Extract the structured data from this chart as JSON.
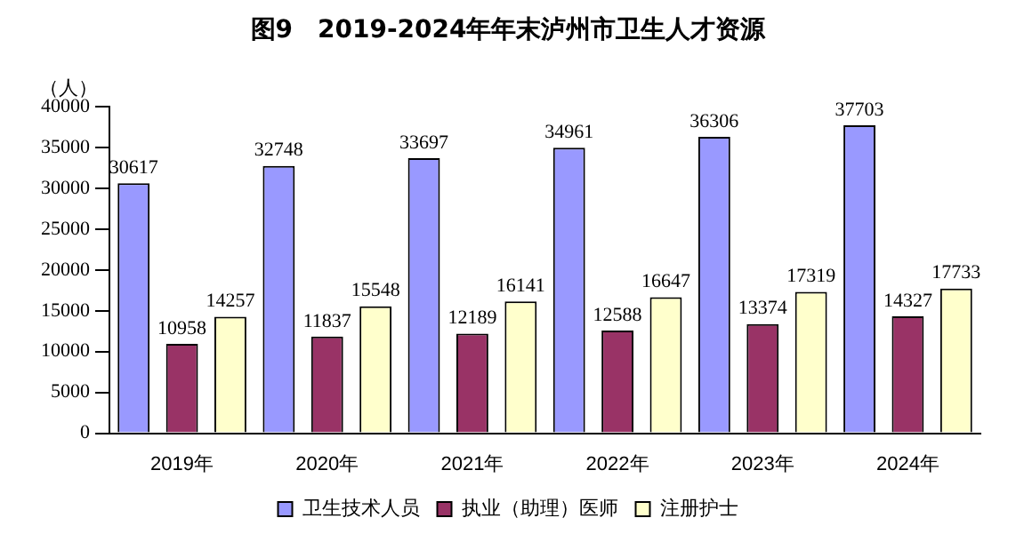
{
  "chart_data": {
    "type": "bar",
    "title": "图9　2019-2024年年末泸州市卫生人才资源",
    "ylabel": "（人）",
    "categories": [
      "2019年",
      "2020年",
      "2021年",
      "2022年",
      "2023年",
      "2024年"
    ],
    "series": [
      {
        "name": "卫生技术人员",
        "color": "#9999ff",
        "values": [
          30617,
          32748,
          33697,
          34961,
          36306,
          37703
        ]
      },
      {
        "name": "执业（助理）医师",
        "color": "#993366",
        "values": [
          10958,
          11837,
          12189,
          12588,
          13374,
          14327
        ]
      },
      {
        "name": "注册护士",
        "color": "#ffffcc",
        "values": [
          14257,
          15548,
          16141,
          16647,
          17319,
          17733
        ]
      }
    ],
    "ylim": [
      0,
      40000
    ],
    "yticks": [
      0,
      5000,
      10000,
      15000,
      20000,
      25000,
      30000,
      35000,
      40000
    ],
    "grid": false,
    "legend": "bottom",
    "data_labels": true
  }
}
